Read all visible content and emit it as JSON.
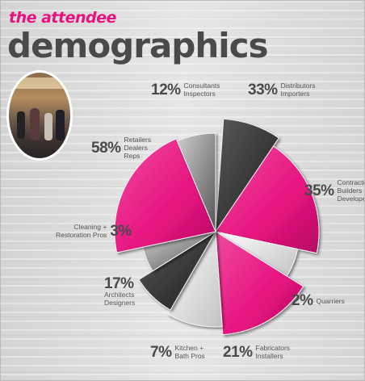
{
  "header": {
    "subtitle": "the attendee",
    "title": "demographics"
  },
  "colors": {
    "pink": "#e6137f",
    "dark": "#3a3a3a",
    "gray": "#9a9a9a",
    "white": "#f4f4f4"
  },
  "chart_data": {
    "type": "pie",
    "slices": [
      {
        "pct": "33%",
        "lines": [
          "Distributors",
          "Importers"
        ],
        "value": 33
      },
      {
        "pct": "35%",
        "lines": [
          "Contractors",
          "Builders",
          "Developers"
        ],
        "value": 35
      },
      {
        "pct": "2%",
        "lines": [
          "Quarriers"
        ],
        "value": 2
      },
      {
        "pct": "21%",
        "lines": [
          "Fabricators",
          "Installers"
        ],
        "value": 21
      },
      {
        "pct": "7%",
        "lines": [
          "Kitchen +",
          "Bath Pros"
        ],
        "value": 7
      },
      {
        "pct": "17%",
        "lines": [
          "Architects",
          "Designers"
        ],
        "value": 17
      },
      {
        "pct": "3%",
        "lines": [
          "Cleaning +",
          "Restoration Pros"
        ],
        "value": 3
      },
      {
        "pct": "58%",
        "lines": [
          "Retailers",
          "Dealers",
          "Reps"
        ],
        "value": 58
      },
      {
        "pct": "12%",
        "lines": [
          "Consultants",
          "Inspectors"
        ],
        "value": 12
      }
    ]
  }
}
